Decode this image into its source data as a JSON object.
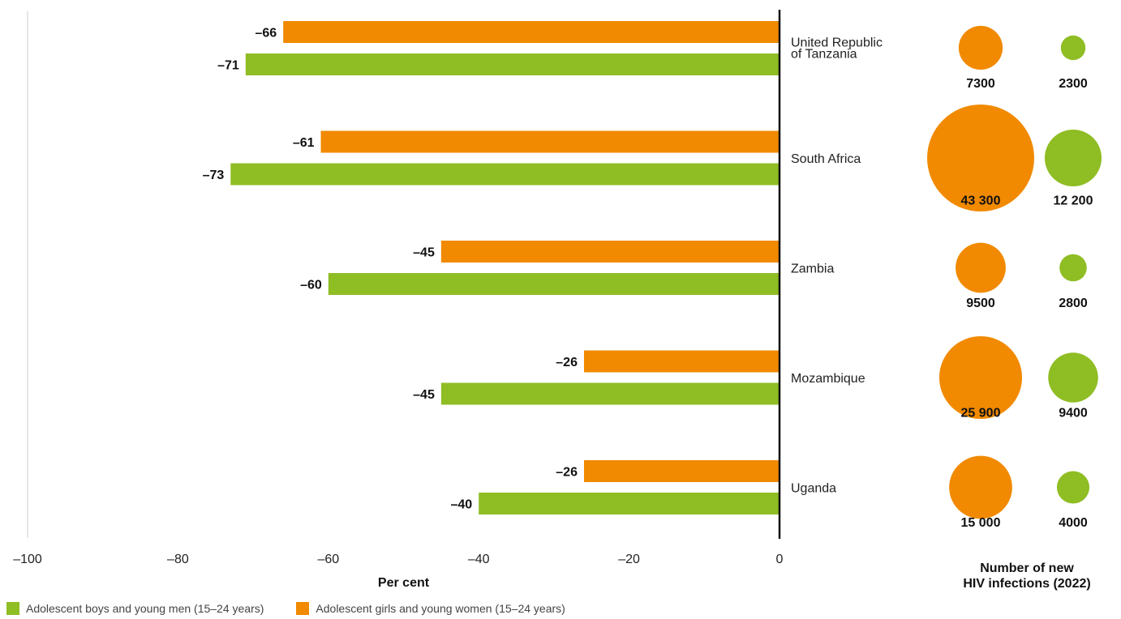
{
  "chart_data": {
    "type": "bar",
    "orientation": "horizontal",
    "categories": [
      "United Republic of Tanzania",
      "South Africa",
      "Zambia",
      "Mozambique",
      "Uganda"
    ],
    "category_lines": [
      [
        "United Republic",
        "of Tanzania"
      ],
      [
        "South Africa"
      ],
      [
        "Zambia"
      ],
      [
        "Mozambique"
      ],
      [
        "Uganda"
      ]
    ],
    "series": [
      {
        "name": "Adolescent girls and young women (15–24 years)",
        "color": "#f18a00",
        "values": [
          -66,
          -61,
          -45,
          -26,
          -26
        ],
        "labels": [
          "–66",
          "–61",
          "–45",
          "–26",
          "–26"
        ]
      },
      {
        "name": "Adolescent boys and young men (15–24 years)",
        "color": "#8fbd24",
        "values": [
          -71,
          -73,
          -60,
          -45,
          -40
        ],
        "labels": [
          "–71",
          "–73",
          "–60",
          "–45",
          "–40"
        ]
      }
    ],
    "xlim": [
      -100,
      0
    ],
    "xticks": [
      -100,
      -80,
      -60,
      -40,
      -20,
      0
    ],
    "xtick_labels": [
      "–100",
      "–80",
      "–60",
      "–40",
      "–20",
      "0"
    ],
    "xlabel": "Per cent",
    "bubbles": {
      "title_lines": [
        "Number of new",
        "HIV infections (2022)"
      ],
      "girls": [
        7300,
        43300,
        9500,
        25900,
        15000
      ],
      "girls_labels": [
        "7300",
        "43 300",
        "9500",
        "25 900",
        "15 000"
      ],
      "boys": [
        2300,
        12200,
        2800,
        9400,
        4000
      ],
      "boys_labels": [
        "2300",
        "12 200",
        "2800",
        "9400",
        "4000"
      ]
    },
    "legend": [
      {
        "label": "Adolescent boys and young men (15–24 years)",
        "color": "#8fbd24"
      },
      {
        "label": "Adolescent girls and young women (15–24 years)",
        "color": "#f18a00"
      }
    ],
    "legend_placement": "bottom-left",
    "grid": false
  }
}
